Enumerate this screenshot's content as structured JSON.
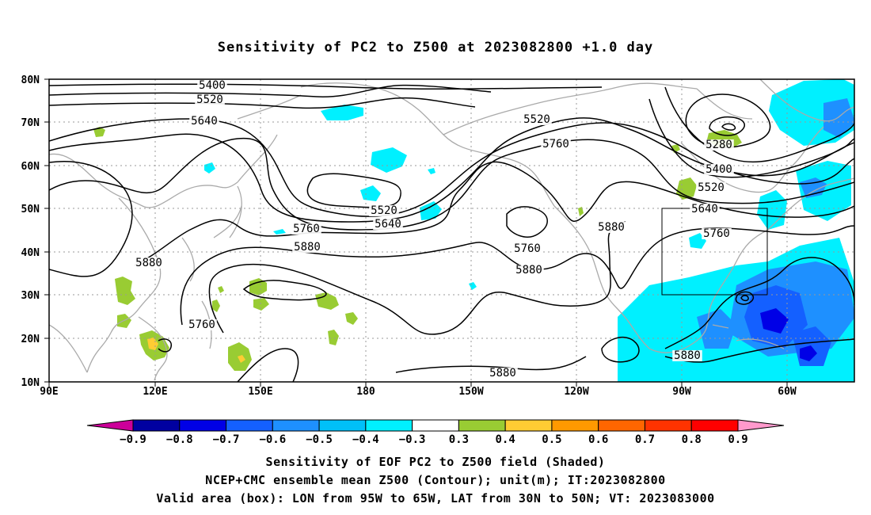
{
  "title": "Sensitivity of PC2 to Z500 at 2023082800 +1.0 day",
  "map": {
    "lat_labels": [
      "80N",
      "70N",
      "60N",
      "50N",
      "40N",
      "30N",
      "20N",
      "10N"
    ],
    "lon_labels": [
      "90E",
      "120E",
      "150E",
      "180",
      "150W",
      "120W",
      "90W",
      "60W"
    ],
    "contour_labels": [
      "5400",
      "5520",
      "5640",
      "5520",
      "5760",
      "5280",
      "5400",
      "5520",
      "5640",
      "5760",
      "5520",
      "5640",
      "5760",
      "5880",
      "5760",
      "5880",
      "5880",
      "5760",
      "5880",
      "5880",
      "5880"
    ],
    "valid_box": {
      "lon_west": "95W",
      "lon_east": "65W",
      "lat_south": "30N",
      "lat_north": "50N"
    }
  },
  "colorbar": {
    "labels": [
      "−0.9",
      "−0.8",
      "−0.7",
      "−0.6",
      "−0.5",
      "−0.4",
      "−0.3",
      "0.3",
      "0.4",
      "0.5",
      "0.6",
      "0.7",
      "0.8",
      "0.9"
    ],
    "colors": [
      "#cc0099",
      "#0000a0",
      "#0000e6",
      "#1460ff",
      "#1e90ff",
      "#00c0f8",
      "#00f0ff",
      "#ffffff",
      "#99cc33",
      "#ffcc33",
      "#ff9900",
      "#ff6600",
      "#ff3300",
      "#ff0000",
      "#ff99cc"
    ]
  },
  "captions": {
    "line1": "Sensitivity of EOF PC2 to Z500 field (Shaded)",
    "line2": "NCEP+CMC ensemble mean Z500 (Contour); unit(m); IT:2023082800",
    "line3": "Valid area (box): LON from 95W to 65W, LAT from 30N to 50N; VT: 2023083000"
  }
}
